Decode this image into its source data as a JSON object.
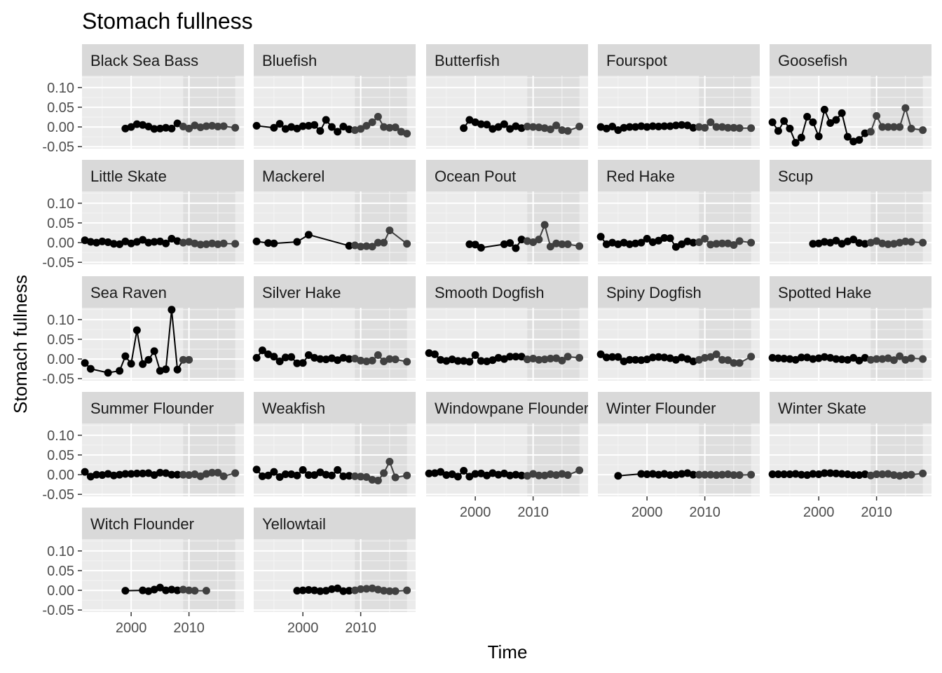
{
  "chart_data": {
    "type": "line",
    "title": "Stomach fullness",
    "xlabel": "Time",
    "ylabel": "Stomach fullness",
    "xlim": [
      1991.5,
      2019.5
    ],
    "ylim": [
      -0.055,
      0.13
    ],
    "x_ticks": [
      2000,
      2010
    ],
    "y_ticks": [
      -0.05,
      0.0,
      0.05,
      0.1
    ],
    "y_tick_labels": [
      "-0.05",
      "0.00",
      "0.05",
      "0.10"
    ],
    "x_tick_labels": [
      "2000",
      "2010"
    ],
    "shaded_period": [
      2009,
      2018
    ],
    "grid": true,
    "facet_layout": {
      "columns": 5,
      "rows": 5
    },
    "facets": [
      {
        "name": "Black Sea Bass",
        "x": [
          1999,
          2000,
          2001,
          2002,
          2003,
          2004,
          2005,
          2006,
          2007,
          2008,
          2009,
          2010,
          2011,
          2012,
          2013,
          2014,
          2015,
          2016,
          2018
        ],
        "y": [
          -0.004,
          0.0,
          0.007,
          0.005,
          0.001,
          -0.005,
          -0.004,
          -0.002,
          -0.004,
          0.009,
          0.001,
          -0.004,
          0.004,
          -0.001,
          0.002,
          0.003,
          0.001,
          0.002,
          -0.002
        ]
      },
      {
        "name": "Bluefish",
        "x": [
          1992,
          1995,
          1996,
          1997,
          1998,
          1999,
          2000,
          2001,
          2002,
          2003,
          2004,
          2005,
          2006,
          2007,
          2008,
          2009,
          2010,
          2011,
          2012,
          2013,
          2014,
          2015,
          2016,
          2017,
          2018
        ],
        "y": [
          0.003,
          -0.002,
          0.008,
          -0.005,
          0.0,
          -0.004,
          0.002,
          0.003,
          0.005,
          -0.01,
          0.018,
          0.0,
          -0.012,
          0.001,
          -0.006,
          -0.008,
          -0.005,
          0.003,
          0.012,
          0.026,
          0.0,
          -0.002,
          -0.001,
          -0.012,
          -0.017
        ]
      },
      {
        "name": "Butterfish",
        "x": [
          1998,
          1999,
          2000,
          2001,
          2002,
          2003,
          2004,
          2005,
          2006,
          2007,
          2008,
          2009,
          2010,
          2011,
          2012,
          2013,
          2014,
          2015,
          2016,
          2018
        ],
        "y": [
          -0.003,
          0.018,
          0.012,
          0.007,
          0.006,
          -0.005,
          0.0,
          0.007,
          -0.005,
          0.002,
          -0.003,
          0.001,
          0.0,
          -0.001,
          -0.003,
          -0.006,
          0.004,
          -0.008,
          -0.01,
          0.001
        ]
      },
      {
        "name": "Fourspot",
        "x": [
          1992,
          1993,
          1994,
          1995,
          1996,
          1997,
          1998,
          1999,
          2000,
          2001,
          2002,
          2003,
          2004,
          2005,
          2006,
          2007,
          2008,
          2009,
          2010,
          2011,
          2012,
          2013,
          2014,
          2015,
          2016,
          2018
        ],
        "y": [
          0.0,
          -0.004,
          0.001,
          -0.008,
          -0.002,
          0.0,
          0.0,
          0.002,
          0.0,
          0.002,
          0.001,
          0.002,
          0.002,
          0.004,
          0.005,
          0.004,
          -0.002,
          0.0,
          -0.002,
          0.012,
          0.0,
          0.0,
          -0.002,
          -0.002,
          -0.003,
          -0.003
        ]
      },
      {
        "name": "Goosefish",
        "x": [
          1992,
          1993,
          1994,
          1995,
          1996,
          1997,
          1998,
          1999,
          2000,
          2001,
          2002,
          2003,
          2004,
          2005,
          2006,
          2007,
          2008,
          2009,
          2010,
          2011,
          2012,
          2013,
          2014,
          2015,
          2016,
          2018
        ],
        "y": [
          0.012,
          -0.01,
          0.015,
          -0.004,
          -0.04,
          -0.027,
          0.026,
          0.012,
          -0.024,
          0.044,
          0.01,
          0.018,
          0.035,
          -0.025,
          -0.037,
          -0.033,
          -0.016,
          -0.012,
          0.028,
          0.0,
          0.0,
          0.0,
          0.0,
          0.048,
          -0.004,
          -0.008
        ]
      },
      {
        "name": "Little Skate",
        "x": [
          1992,
          1993,
          1994,
          1995,
          1996,
          1997,
          1998,
          1999,
          2000,
          2001,
          2002,
          2003,
          2004,
          2005,
          2006,
          2007,
          2008,
          2009,
          2010,
          2011,
          2012,
          2013,
          2014,
          2015,
          2016,
          2018
        ],
        "y": [
          0.006,
          0.002,
          0.0,
          0.003,
          0.001,
          -0.003,
          -0.004,
          0.003,
          -0.002,
          0.002,
          0.007,
          0.0,
          0.002,
          0.003,
          -0.002,
          0.01,
          0.004,
          0.0,
          0.002,
          -0.002,
          -0.005,
          -0.004,
          -0.002,
          -0.004,
          -0.002,
          -0.003
        ]
      },
      {
        "name": "Mackerel",
        "x": [
          1992,
          1994,
          1995,
          1999,
          2001,
          2008,
          2009,
          2010,
          2011,
          2012,
          2013,
          2014,
          2015,
          2018
        ],
        "y": [
          0.003,
          -0.001,
          -0.002,
          0.002,
          0.02,
          -0.008,
          -0.007,
          -0.01,
          -0.009,
          -0.01,
          0.0,
          0.0,
          0.031,
          -0.003
        ]
      },
      {
        "name": "Ocean Pout",
        "x": [
          1999,
          2000,
          2001,
          2005,
          2006,
          2007,
          2008,
          2009,
          2010,
          2011,
          2012,
          2013,
          2014,
          2015,
          2016,
          2018
        ],
        "y": [
          -0.004,
          -0.005,
          -0.013,
          -0.004,
          -0.001,
          -0.014,
          0.008,
          0.004,
          0.001,
          0.008,
          0.045,
          -0.01,
          -0.002,
          -0.004,
          -0.004,
          -0.009
        ]
      },
      {
        "name": "Red Hake",
        "x": [
          1992,
          1993,
          1994,
          1995,
          1996,
          1997,
          1998,
          1999,
          2000,
          2001,
          2002,
          2003,
          2004,
          2005,
          2006,
          2007,
          2008,
          2009,
          2010,
          2011,
          2012,
          2013,
          2014,
          2015,
          2016,
          2018
        ],
        "y": [
          0.015,
          -0.004,
          0.0,
          -0.004,
          0.0,
          -0.004,
          -0.002,
          0.0,
          0.01,
          0.001,
          0.005,
          0.012,
          0.011,
          -0.011,
          -0.004,
          0.003,
          0.0,
          0.001,
          0.01,
          -0.005,
          -0.003,
          -0.002,
          -0.002,
          -0.006,
          0.004,
          0.0
        ]
      },
      {
        "name": "Scup",
        "x": [
          1999,
          2000,
          2001,
          2002,
          2003,
          2004,
          2005,
          2006,
          2007,
          2008,
          2009,
          2010,
          2011,
          2012,
          2013,
          2014,
          2015,
          2016,
          2018
        ],
        "y": [
          -0.003,
          -0.002,
          0.002,
          0.0,
          0.005,
          -0.003,
          0.003,
          0.008,
          -0.001,
          -0.003,
          0.0,
          0.004,
          -0.002,
          -0.004,
          -0.003,
          0.0,
          0.003,
          0.002,
          0.0
        ]
      },
      {
        "name": "Sea Raven",
        "x": [
          1992,
          1993,
          1996,
          1998,
          1999,
          2000,
          2001,
          2002,
          2003,
          2004,
          2005,
          2006,
          2007,
          2008,
          2009,
          2010
        ],
        "y": [
          -0.01,
          -0.025,
          -0.035,
          -0.03,
          0.007,
          -0.012,
          0.073,
          -0.013,
          -0.002,
          0.02,
          -0.03,
          -0.026,
          0.125,
          -0.027,
          -0.002,
          -0.002
        ]
      },
      {
        "name": "Silver Hake",
        "x": [
          1992,
          1993,
          1994,
          1995,
          1996,
          1997,
          1998,
          1999,
          2000,
          2001,
          2002,
          2003,
          2004,
          2005,
          2006,
          2007,
          2008,
          2009,
          2010,
          2011,
          2012,
          2013,
          2014,
          2015,
          2016,
          2018
        ],
        "y": [
          0.003,
          0.022,
          0.012,
          0.006,
          -0.006,
          0.004,
          0.005,
          -0.011,
          -0.01,
          0.01,
          0.003,
          0.0,
          -0.001,
          0.002,
          -0.003,
          0.003,
          0.0,
          0.001,
          -0.004,
          -0.006,
          -0.004,
          0.01,
          -0.006,
          0.0,
          -0.001,
          -0.007
        ]
      },
      {
        "name": "Smooth Dogfish",
        "x": [
          1992,
          1993,
          1994,
          1995,
          1996,
          1997,
          1998,
          1999,
          2000,
          2001,
          2002,
          2003,
          2004,
          2005,
          2006,
          2007,
          2008,
          2009,
          2010,
          2011,
          2012,
          2013,
          2014,
          2015,
          2016,
          2018
        ],
        "y": [
          0.015,
          0.012,
          -0.002,
          -0.005,
          -0.001,
          -0.005,
          -0.005,
          -0.007,
          0.01,
          -0.005,
          -0.006,
          -0.003,
          0.003,
          0.0,
          0.006,
          0.006,
          0.006,
          -0.001,
          0.001,
          -0.002,
          -0.001,
          0.001,
          0.002,
          -0.004,
          0.006,
          0.003
        ]
      },
      {
        "name": "Spiny Dogfish",
        "x": [
          1992,
          1993,
          1994,
          1995,
          1996,
          1997,
          1998,
          1999,
          2000,
          2001,
          2002,
          2003,
          2004,
          2005,
          2006,
          2007,
          2008,
          2009,
          2010,
          2011,
          2012,
          2013,
          2014,
          2015,
          2016,
          2018
        ],
        "y": [
          0.012,
          0.004,
          0.005,
          0.005,
          -0.006,
          -0.002,
          -0.002,
          -0.003,
          -0.001,
          0.004,
          0.005,
          0.004,
          0.002,
          -0.002,
          0.004,
          0.0,
          -0.006,
          -0.002,
          0.003,
          0.005,
          0.012,
          -0.002,
          -0.003,
          -0.01,
          -0.01,
          0.006
        ]
      },
      {
        "name": "Spotted Hake",
        "x": [
          1992,
          1993,
          1994,
          1995,
          1996,
          1997,
          1998,
          1999,
          2000,
          2001,
          2002,
          2003,
          2004,
          2005,
          2006,
          2007,
          2008,
          2009,
          2010,
          2011,
          2012,
          2013,
          2014,
          2015,
          2016,
          2018
        ],
        "y": [
          0.003,
          0.002,
          0.001,
          0.0,
          -0.002,
          0.004,
          0.004,
          0.0,
          0.002,
          0.005,
          0.003,
          0.0,
          -0.001,
          -0.002,
          0.003,
          -0.004,
          0.003,
          -0.002,
          0.0,
          0.0,
          0.002,
          -0.003,
          0.007,
          -0.002,
          0.002,
          0.0
        ]
      },
      {
        "name": "Summer Flounder",
        "x": [
          1992,
          1993,
          1994,
          1995,
          1996,
          1997,
          1998,
          1999,
          2000,
          2001,
          2002,
          2003,
          2004,
          2005,
          2006,
          2007,
          2008,
          2009,
          2010,
          2011,
          2012,
          2013,
          2014,
          2015,
          2016,
          2018
        ],
        "y": [
          0.007,
          -0.005,
          0.0,
          -0.001,
          0.002,
          -0.002,
          0.0,
          0.002,
          0.002,
          0.003,
          0.003,
          0.004,
          -0.001,
          0.005,
          0.004,
          0.0,
          0.0,
          0.0,
          -0.001,
          0.001,
          -0.004,
          0.002,
          0.005,
          0.005,
          -0.004,
          0.004
        ]
      },
      {
        "name": "Weakfish",
        "x": [
          1992,
          1993,
          1994,
          1995,
          1996,
          1997,
          1998,
          1999,
          2000,
          2001,
          2002,
          2003,
          2004,
          2005,
          2006,
          2007,
          2008,
          2009,
          2010,
          2011,
          2012,
          2013,
          2014,
          2015,
          2016,
          2018
        ],
        "y": [
          0.013,
          -0.004,
          -0.002,
          0.007,
          -0.006,
          0.001,
          0.001,
          -0.002,
          0.012,
          -0.001,
          -0.001,
          0.006,
          0.0,
          -0.002,
          0.012,
          -0.004,
          -0.003,
          -0.004,
          -0.005,
          -0.006,
          -0.013,
          -0.015,
          0.004,
          0.033,
          -0.007,
          -0.002
        ]
      },
      {
        "name": "Windowpane Flounder",
        "x": [
          1992,
          1993,
          1994,
          1995,
          1996,
          1997,
          1998,
          1999,
          2000,
          2001,
          2002,
          2003,
          2004,
          2005,
          2006,
          2007,
          2008,
          2009,
          2010,
          2011,
          2012,
          2013,
          2014,
          2015,
          2016,
          2018
        ],
        "y": [
          0.003,
          0.004,
          0.007,
          -0.001,
          0.001,
          -0.005,
          0.01,
          -0.005,
          0.002,
          0.003,
          -0.002,
          0.004,
          0.0,
          0.003,
          -0.002,
          0.0,
          -0.002,
          -0.003,
          0.002,
          -0.002,
          -0.002,
          0.001,
          -0.001,
          0.002,
          -0.001,
          0.011
        ]
      },
      {
        "name": "Winter Flounder",
        "x": [
          1995,
          1999,
          2000,
          2001,
          2002,
          2003,
          2004,
          2005,
          2006,
          2007,
          2008,
          2009,
          2010,
          2011,
          2012,
          2013,
          2014,
          2015,
          2016,
          2018
        ],
        "y": [
          -0.003,
          0.002,
          0.001,
          0.002,
          0.0,
          0.002,
          -0.001,
          0.0,
          0.002,
          0.004,
          0.0,
          0.0,
          0.0,
          0.0,
          -0.001,
          0.0,
          0.001,
          -0.001,
          -0.001,
          0.0
        ]
      },
      {
        "name": "Winter Skate",
        "x": [
          1992,
          1993,
          1994,
          1995,
          1996,
          1997,
          1998,
          1999,
          2000,
          2001,
          2002,
          2003,
          2004,
          2005,
          2006,
          2007,
          2008,
          2009,
          2010,
          2011,
          2012,
          2013,
          2014,
          2015,
          2016,
          2018
        ],
        "y": [
          0.001,
          0.001,
          0.001,
          0.001,
          0.002,
          0.0,
          -0.001,
          0.002,
          0.001,
          0.004,
          0.004,
          0.003,
          0.002,
          0.001,
          -0.001,
          -0.001,
          0.001,
          -0.002,
          0.001,
          0.001,
          0.002,
          -0.001,
          -0.003,
          -0.001,
          0.0,
          0.003
        ]
      },
      {
        "name": "Witch Flounder",
        "x": [
          1999,
          2002,
          2003,
          2004,
          2005,
          2006,
          2007,
          2008,
          2009,
          2010,
          2011,
          2013
        ],
        "y": [
          -0.001,
          0.0,
          -0.002,
          0.002,
          0.007,
          0.0,
          0.002,
          0.0,
          0.002,
          0.0,
          -0.001,
          -0.001
        ]
      },
      {
        "name": "Yellowtail",
        "x": [
          1999,
          2000,
          2001,
          2002,
          2003,
          2004,
          2005,
          2006,
          2007,
          2008,
          2009,
          2010,
          2011,
          2012,
          2013,
          2014,
          2015,
          2016,
          2018
        ],
        "y": [
          -0.001,
          0.0,
          0.001,
          0.0,
          -0.002,
          -0.001,
          0.003,
          0.005,
          -0.002,
          -0.001,
          0.0,
          0.003,
          0.004,
          0.005,
          0.002,
          -0.001,
          -0.002,
          -0.002,
          0.0
        ]
      }
    ]
  },
  "colors": {
    "panel_background": "#ebebeb",
    "shade_background": "#dcdcdc",
    "grid_major": "#ffffff",
    "grid_minor": "#f4f4f4",
    "strip_background": "#d9d9d9",
    "point_pre": "#000000",
    "point_post": "#404040"
  }
}
